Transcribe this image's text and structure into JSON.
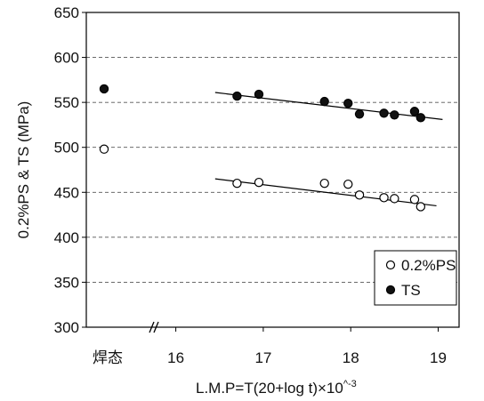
{
  "chart_data": {
    "type": "scatter",
    "xlabel": "L.M.P=T(20+log t)×10",
    "xlabel_superscript": "^-3",
    "ylabel": "0.2%PS & TS  (MPa)",
    "ylim": [
      300,
      650
    ],
    "yticks": [
      "300",
      "350",
      "400",
      "450",
      "500",
      "550",
      "600",
      "650"
    ],
    "xlim": [
      15.0,
      19.5
    ],
    "xticks": [
      "16",
      "17",
      "18",
      "19"
    ],
    "x_category_label": "焊态",
    "x_break": true,
    "grid": "horizontal-dashed",
    "legend_position": "bottom-right",
    "as_welded": [
      {
        "series": "0.2%PS",
        "y": 498
      },
      {
        "series": "TS",
        "y": 565
      }
    ],
    "series": [
      {
        "name": "0.2%PS",
        "marker": "open-circle",
        "points": [
          {
            "x": 16.7,
            "y": 460
          },
          {
            "x": 16.95,
            "y": 461
          },
          {
            "x": 17.7,
            "y": 460
          },
          {
            "x": 17.97,
            "y": 459
          },
          {
            "x": 18.1,
            "y": 447
          },
          {
            "x": 18.38,
            "y": 444
          },
          {
            "x": 18.5,
            "y": 443
          },
          {
            "x": 18.73,
            "y": 442
          },
          {
            "x": 18.8,
            "y": 434
          }
        ],
        "trend": [
          {
            "x": 16.45,
            "y": 465
          },
          {
            "x": 18.98,
            "y": 435
          }
        ]
      },
      {
        "name": "TS",
        "marker": "filled-circle",
        "points": [
          {
            "x": 16.7,
            "y": 557
          },
          {
            "x": 16.95,
            "y": 559
          },
          {
            "x": 17.7,
            "y": 551
          },
          {
            "x": 17.97,
            "y": 549
          },
          {
            "x": 18.1,
            "y": 537
          },
          {
            "x": 18.38,
            "y": 538
          },
          {
            "x": 18.5,
            "y": 536
          },
          {
            "x": 18.73,
            "y": 540
          },
          {
            "x": 18.8,
            "y": 533
          }
        ],
        "trend": [
          {
            "x": 16.45,
            "y": 561
          },
          {
            "x": 19.05,
            "y": 531
          }
        ]
      }
    ]
  }
}
